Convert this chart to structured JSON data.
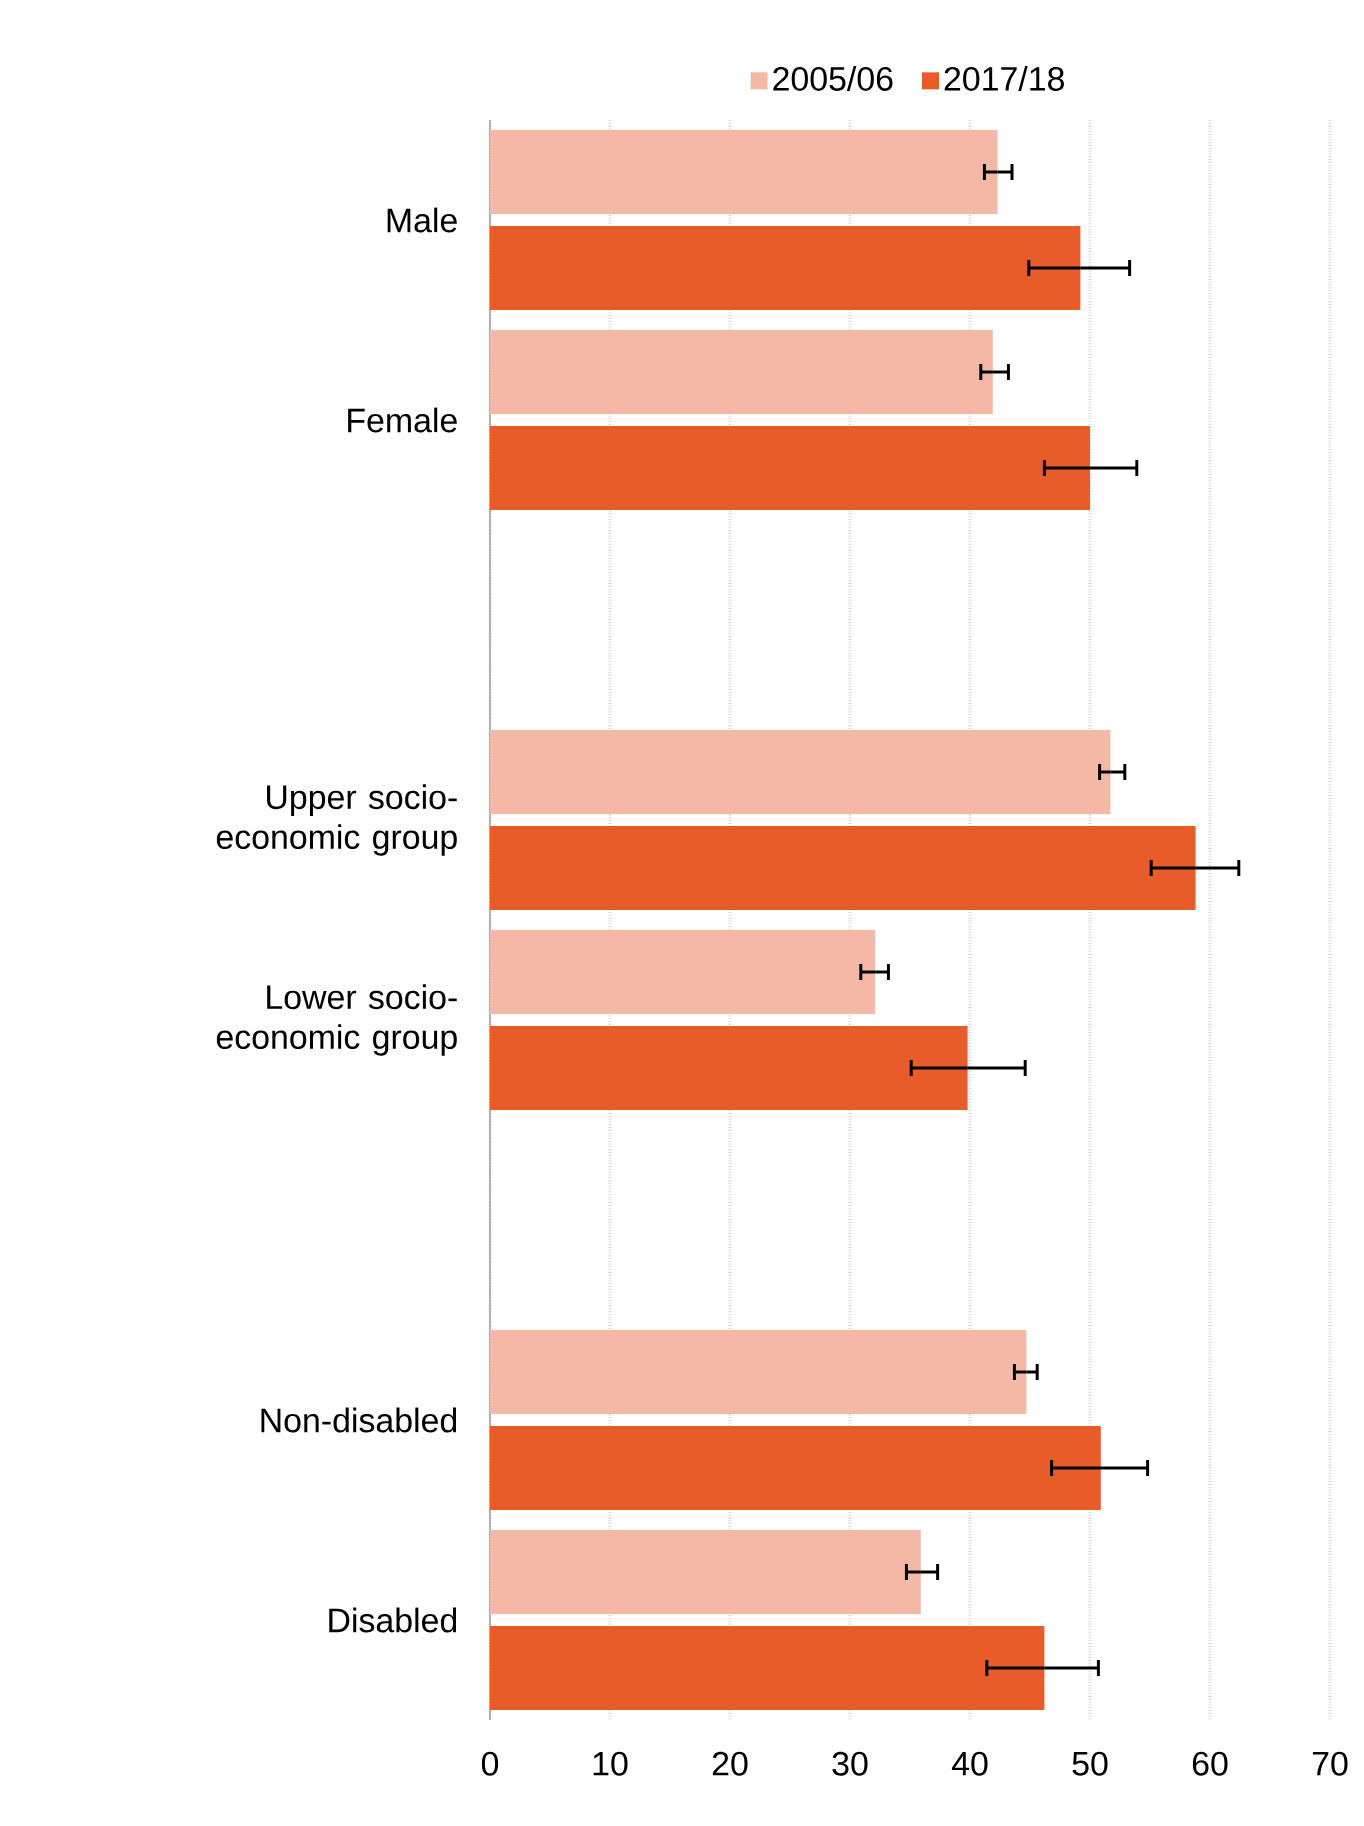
{
  "chart_data": {
    "type": "bar",
    "orientation": "horizontal",
    "categories": [
      "Male",
      "Female",
      null,
      "Upper socio-economic group",
      "Lower socio-economic group",
      null,
      "Non-disabled",
      "Disabled"
    ],
    "series": [
      {
        "name": "2005/06",
        "color": "#f4b9a6",
        "values": [
          42.3,
          41.9,
          null,
          51.7,
          32.1,
          null,
          44.7,
          35.9
        ],
        "errors": [
          [
            41.2,
            43.5
          ],
          [
            40.9,
            43.2
          ],
          null,
          [
            50.8,
            52.9
          ],
          [
            30.9,
            33.2
          ],
          null,
          [
            43.7,
            45.6
          ],
          [
            34.7,
            37.3
          ]
        ]
      },
      {
        "name": "2017/18",
        "color": "#e85c29",
        "values": [
          49.2,
          50.0,
          null,
          58.8,
          39.8,
          null,
          50.9,
          46.2
        ],
        "errors": [
          [
            44.9,
            53.3
          ],
          [
            46.2,
            53.9
          ],
          null,
          [
            55.1,
            62.4
          ],
          [
            35.1,
            44.6
          ],
          null,
          [
            46.8,
            54.8
          ],
          [
            41.4,
            50.7
          ]
        ]
      }
    ],
    "xlim": [
      0,
      70
    ],
    "xticks": [
      0,
      10,
      20,
      30,
      40,
      50,
      60,
      70
    ],
    "grid": "x",
    "legend": "top"
  }
}
